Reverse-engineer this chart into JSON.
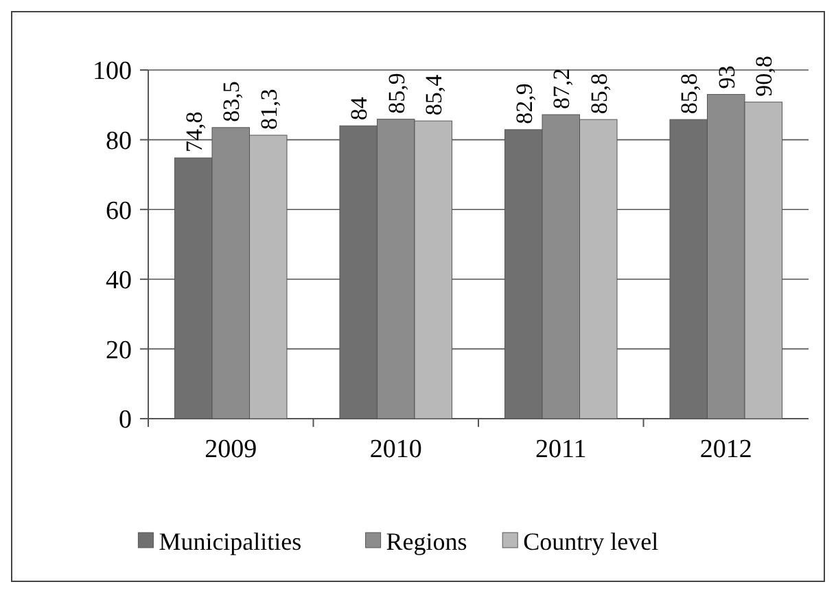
{
  "chart_data": {
    "type": "bar",
    "categories": [
      "2009",
      "2010",
      "2011",
      "2012"
    ],
    "series": [
      {
        "name": "Municipalities",
        "color": "#707070",
        "values": [
          74.8,
          84,
          82.9,
          85.8
        ],
        "value_labels": [
          "74,8",
          "84",
          "82,9",
          "85,8"
        ]
      },
      {
        "name": "Regions",
        "color": "#8c8c8c",
        "values": [
          83.5,
          85.9,
          87.2,
          93
        ],
        "value_labels": [
          "83,5",
          "85,9",
          "87,2",
          "93"
        ]
      },
      {
        "name": "Country level",
        "color": "#b8b8b8",
        "values": [
          81.3,
          85.4,
          85.8,
          90.8
        ],
        "value_labels": [
          "81,3",
          "85,4",
          "85,8",
          "90,8"
        ]
      }
    ],
    "ylim": [
      0,
      100
    ],
    "yticks": [
      0,
      20,
      40,
      60,
      80,
      100
    ],
    "grid": "y",
    "legend": "bottom"
  }
}
